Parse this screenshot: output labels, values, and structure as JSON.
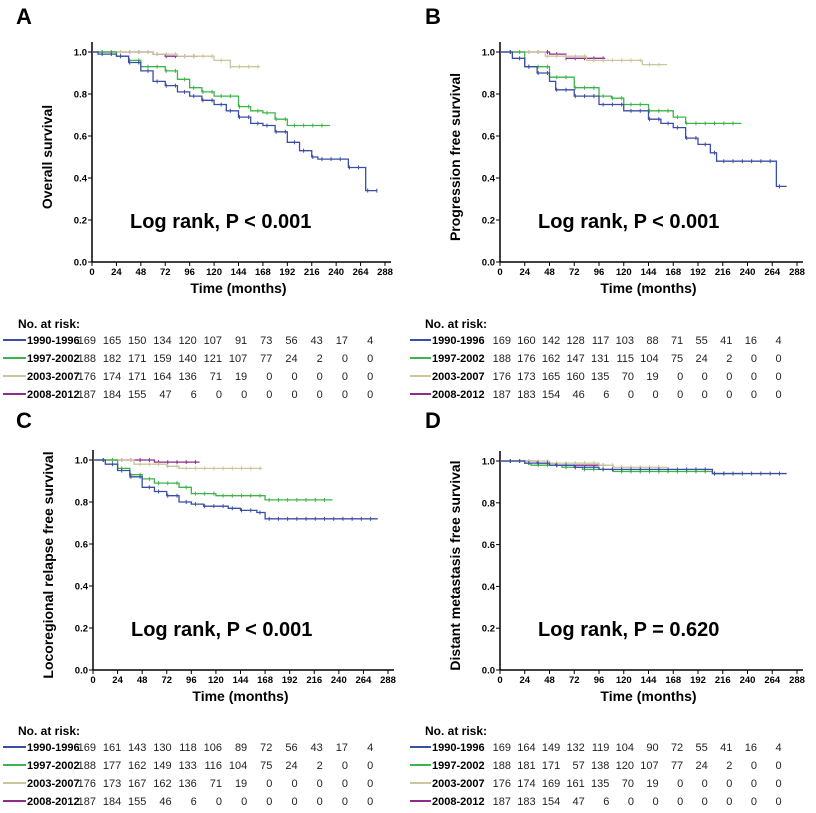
{
  "colors": {
    "1990-1996": "#3b4ea6",
    "1997-2002": "#3db54a",
    "2003-2007": "#cbc69c",
    "2008-2012": "#8e2b8c"
  },
  "chart_data": [
    {
      "type": "line",
      "panel": "A",
      "ylabel": "Overall survival",
      "xlabel": "Time (months)",
      "xlim": [
        0,
        288
      ],
      "ylim": [
        0,
        1.0
      ],
      "xticks": [
        "0",
        "24",
        "48",
        "72",
        "96",
        "120",
        "144",
        "168",
        "192",
        "216",
        "240",
        "264",
        "288"
      ],
      "yticks": [
        "0.0",
        "0.2",
        "0.4",
        "0.6",
        "0.8",
        "1.0"
      ],
      "annotation": "Log rank, P < 0.001",
      "series": [
        {
          "name": "1990-1996",
          "points": [
            [
              0,
              1
            ],
            [
              6,
              0.99
            ],
            [
              24,
              0.98
            ],
            [
              36,
              0.95
            ],
            [
              48,
              0.91
            ],
            [
              60,
              0.86
            ],
            [
              72,
              0.84
            ],
            [
              84,
              0.81
            ],
            [
              96,
              0.79
            ],
            [
              108,
              0.77
            ],
            [
              120,
              0.75
            ],
            [
              132,
              0.72
            ],
            [
              144,
              0.69
            ],
            [
              156,
              0.66
            ],
            [
              168,
              0.65
            ],
            [
              180,
              0.62
            ],
            [
              192,
              0.57
            ],
            [
              204,
              0.53
            ],
            [
              216,
              0.5
            ],
            [
              222,
              0.49
            ],
            [
              251,
              0.49
            ],
            [
              252,
              0.45
            ],
            [
              268,
              0.45
            ],
            [
              269,
              0.34
            ],
            [
              280,
              0.34
            ]
          ]
        },
        {
          "name": "1997-2002",
          "points": [
            [
              0,
              1
            ],
            [
              24,
              0.98
            ],
            [
              36,
              0.96
            ],
            [
              48,
              0.93
            ],
            [
              72,
              0.91
            ],
            [
              84,
              0.87
            ],
            [
              96,
              0.83
            ],
            [
              108,
              0.81
            ],
            [
              120,
              0.79
            ],
            [
              144,
              0.74
            ],
            [
              156,
              0.72
            ],
            [
              168,
              0.71
            ],
            [
              180,
              0.68
            ],
            [
              192,
              0.65
            ],
            [
              234,
              0.65
            ]
          ]
        },
        {
          "name": "2003-2007",
          "points": [
            [
              0,
              1
            ],
            [
              60,
              0.99
            ],
            [
              84,
              0.98
            ],
            [
              120,
              0.96
            ],
            [
              136,
              0.93
            ],
            [
              165,
              0.93
            ]
          ]
        },
        {
          "name": "2008-2012",
          "points": [
            [
              0,
              1
            ],
            [
              48,
              1
            ],
            [
              60,
              0.99
            ],
            [
              72,
              0.98
            ],
            [
              104,
              0.98
            ]
          ]
        }
      ],
      "risk_table": {
        "title": "No. at risk:",
        "rows": [
          {
            "label": "1990-1996",
            "values": [
              "169",
              "165",
              "150",
              "134",
              "120",
              "107",
              "91",
              "73",
              "56",
              "43",
              "17",
              "4"
            ]
          },
          {
            "label": "1997-2002",
            "values": [
              "188",
              "182",
              "171",
              "159",
              "140",
              "121",
              "107",
              "77",
              "24",
              "2",
              "0",
              "0"
            ]
          },
          {
            "label": "2003-2007",
            "values": [
              "176",
              "174",
              "171",
              "164",
              "136",
              "71",
              "19",
              "0",
              "0",
              "0",
              "0",
              "0"
            ]
          },
          {
            "label": "2008-2012",
            "values": [
              "187",
              "184",
              "155",
              "47",
              "6",
              "0",
              "0",
              "0",
              "0",
              "0",
              "0",
              "0"
            ]
          }
        ]
      }
    },
    {
      "type": "line",
      "panel": "B",
      "ylabel": "Progression free survival",
      "xlabel": "Time (months)",
      "xlim": [
        0,
        288
      ],
      "ylim": [
        0,
        1.0
      ],
      "xticks": [
        "0",
        "24",
        "48",
        "72",
        "96",
        "120",
        "144",
        "168",
        "192",
        "216",
        "240",
        "264",
        "288"
      ],
      "yticks": [
        "0.0",
        "0.2",
        "0.4",
        "0.6",
        "0.8",
        "1.0"
      ],
      "annotation": "Log rank, P < 0.001",
      "series": [
        {
          "name": "1990-1996",
          "points": [
            [
              0,
              1
            ],
            [
              12,
              0.97
            ],
            [
              24,
              0.93
            ],
            [
              36,
              0.9
            ],
            [
              48,
              0.86
            ],
            [
              54,
              0.82
            ],
            [
              72,
              0.79
            ],
            [
              96,
              0.75
            ],
            [
              120,
              0.72
            ],
            [
              144,
              0.68
            ],
            [
              156,
              0.66
            ],
            [
              168,
              0.64
            ],
            [
              180,
              0.59
            ],
            [
              192,
              0.56
            ],
            [
              204,
              0.52
            ],
            [
              210,
              0.48
            ],
            [
              267,
              0.48
            ],
            [
              268,
              0.36
            ],
            [
              278,
              0.36
            ]
          ]
        },
        {
          "name": "1997-2002",
          "points": [
            [
              0,
              1
            ],
            [
              24,
              0.93
            ],
            [
              48,
              0.88
            ],
            [
              72,
              0.83
            ],
            [
              96,
              0.79
            ],
            [
              108,
              0.78
            ],
            [
              120,
              0.75
            ],
            [
              144,
              0.72
            ],
            [
              168,
              0.69
            ],
            [
              180,
              0.66
            ],
            [
              234,
              0.66
            ]
          ]
        },
        {
          "name": "2003-2007",
          "points": [
            [
              0,
              1
            ],
            [
              44,
              0.98
            ],
            [
              84,
              0.96
            ],
            [
              132,
              0.96
            ],
            [
              138,
              0.94
            ],
            [
              162,
              0.94
            ]
          ]
        },
        {
          "name": "2008-2012",
          "points": [
            [
              0,
              1
            ],
            [
              48,
              0.99
            ],
            [
              64,
              0.97
            ],
            [
              102,
              0.97
            ]
          ]
        }
      ],
      "risk_table": {
        "title": "No. at risk:",
        "rows": [
          {
            "label": "1990-1996",
            "values": [
              "169",
              "160",
              "142",
              "128",
              "117",
              "103",
              "88",
              "71",
              "55",
              "41",
              "16",
              "4"
            ]
          },
          {
            "label": "1997-2002",
            "values": [
              "188",
              "176",
              "162",
              "147",
              "131",
              "115",
              "104",
              "75",
              "24",
              "2",
              "0",
              "0"
            ]
          },
          {
            "label": "2003-2007",
            "values": [
              "176",
              "173",
              "165",
              "160",
              "135",
              "70",
              "19",
              "0",
              "0",
              "0",
              "0",
              "0"
            ]
          },
          {
            "label": "2008-2012",
            "values": [
              "187",
              "183",
              "154",
              "46",
              "6",
              "0",
              "0",
              "0",
              "0",
              "0",
              "0",
              "0"
            ]
          }
        ]
      }
    },
    {
      "type": "line",
      "panel": "C",
      "ylabel": "Locoregional relapse free survival",
      "xlabel": "Time (months)",
      "xlim": [
        0,
        288
      ],
      "ylim": [
        0,
        1.0
      ],
      "xticks": [
        "0",
        "24",
        "48",
        "72",
        "96",
        "120",
        "144",
        "168",
        "192",
        "216",
        "240",
        "264",
        "288"
      ],
      "yticks": [
        "0.0",
        "0.2",
        "0.4",
        "0.6",
        "0.8",
        "1.0"
      ],
      "annotation": "Log rank, P < 0.001",
      "series": [
        {
          "name": "1990-1996",
          "points": [
            [
              0,
              1
            ],
            [
              12,
              0.98
            ],
            [
              24,
              0.95
            ],
            [
              36,
              0.92
            ],
            [
              48,
              0.87
            ],
            [
              60,
              0.85
            ],
            [
              72,
              0.83
            ],
            [
              84,
              0.8
            ],
            [
              96,
              0.79
            ],
            [
              108,
              0.78
            ],
            [
              132,
              0.77
            ],
            [
              144,
              0.76
            ],
            [
              160,
              0.75
            ],
            [
              168,
              0.72
            ],
            [
              278,
              0.72
            ]
          ]
        },
        {
          "name": "1997-2002",
          "points": [
            [
              0,
              1
            ],
            [
              24,
              0.96
            ],
            [
              36,
              0.93
            ],
            [
              48,
              0.91
            ],
            [
              60,
              0.89
            ],
            [
              84,
              0.87
            ],
            [
              96,
              0.84
            ],
            [
              120,
              0.83
            ],
            [
              156,
              0.83
            ],
            [
              168,
              0.81
            ],
            [
              234,
              0.81
            ]
          ]
        },
        {
          "name": "2003-2007",
          "points": [
            [
              0,
              1
            ],
            [
              40,
              0.98
            ],
            [
              72,
              0.97
            ],
            [
              84,
              0.96
            ],
            [
              165,
              0.96
            ]
          ]
        },
        {
          "name": "2008-2012",
          "points": [
            [
              0,
              1
            ],
            [
              48,
              1
            ],
            [
              60,
              0.99
            ],
            [
              104,
              0.99
            ]
          ]
        }
      ],
      "risk_table": {
        "title": "No. at risk:",
        "rows": [
          {
            "label": "1990-1996",
            "values": [
              "169",
              "161",
              "143",
              "130",
              "118",
              "106",
              "89",
              "72",
              "56",
              "43",
              "17",
              "4"
            ]
          },
          {
            "label": "1997-2002",
            "values": [
              "188",
              "177",
              "162",
              "149",
              "133",
              "116",
              "104",
              "75",
              "24",
              "2",
              "0",
              "0"
            ]
          },
          {
            "label": "2003-2007",
            "values": [
              "176",
              "173",
              "167",
              "162",
              "136",
              "71",
              "19",
              "0",
              "0",
              "0",
              "0",
              "0"
            ]
          },
          {
            "label": "2008-2012",
            "values": [
              "187",
              "184",
              "155",
              "46",
              "6",
              "0",
              "0",
              "0",
              "0",
              "0",
              "0",
              "0"
            ]
          }
        ]
      }
    },
    {
      "type": "line",
      "panel": "D",
      "ylabel": "Distant metastasis free survival",
      "xlabel": "Time (months)",
      "xlim": [
        0,
        288
      ],
      "ylim": [
        0,
        1.0
      ],
      "xticks": [
        "0",
        "24",
        "48",
        "72",
        "96",
        "120",
        "144",
        "168",
        "192",
        "216",
        "240",
        "264",
        "288"
      ],
      "yticks": [
        "0.0",
        "0.2",
        "0.4",
        "0.6",
        "0.8",
        "1.0"
      ],
      "annotation": "Log rank, P = 0.620",
      "series": [
        {
          "name": "1990-1996",
          "points": [
            [
              0,
              1
            ],
            [
              24,
              0.99
            ],
            [
              48,
              0.98
            ],
            [
              72,
              0.97
            ],
            [
              96,
              0.96
            ],
            [
              120,
              0.96
            ],
            [
              200,
              0.96
            ],
            [
              206,
              0.94
            ],
            [
              278,
              0.94
            ]
          ]
        },
        {
          "name": "1997-2002",
          "points": [
            [
              0,
              1
            ],
            [
              24,
              0.99
            ],
            [
              30,
              0.98
            ],
            [
              60,
              0.97
            ],
            [
              80,
              0.96
            ],
            [
              110,
              0.95
            ],
            [
              200,
              0.95
            ],
            [
              206,
              0.94
            ],
            [
              234,
              0.94
            ]
          ]
        },
        {
          "name": "2003-2007",
          "points": [
            [
              0,
              1
            ],
            [
              48,
              0.99
            ],
            [
              96,
              0.98
            ],
            [
              110,
              0.97
            ],
            [
              162,
              0.97
            ]
          ]
        },
        {
          "name": "2008-2012",
          "points": [
            [
              0,
              1
            ],
            [
              36,
              0.99
            ],
            [
              54,
              0.98
            ],
            [
              104,
              0.98
            ]
          ]
        }
      ],
      "risk_table": {
        "title": "No. at risk:",
        "rows": [
          {
            "label": "1990-1996",
            "values": [
              "169",
              "164",
              "149",
              "132",
              "119",
              "104",
              "90",
              "72",
              "55",
              "41",
              "16",
              "4"
            ]
          },
          {
            "label": "1997-2002",
            "values": [
              "188",
              "181",
              "171",
              "57",
              "138",
              "120",
              "107",
              "77",
              "24",
              "2",
              "0",
              "0"
            ]
          },
          {
            "label": "2003-2007",
            "values": [
              "176",
              "174",
              "169",
              "161",
              "135",
              "70",
              "19",
              "0",
              "0",
              "0",
              "0",
              "0"
            ]
          },
          {
            "label": "2008-2012",
            "values": [
              "187",
              "183",
              "154",
              "47",
              "6",
              "0",
              "0",
              "0",
              "0",
              "0",
              "0",
              "0"
            ]
          }
        ]
      }
    }
  ]
}
